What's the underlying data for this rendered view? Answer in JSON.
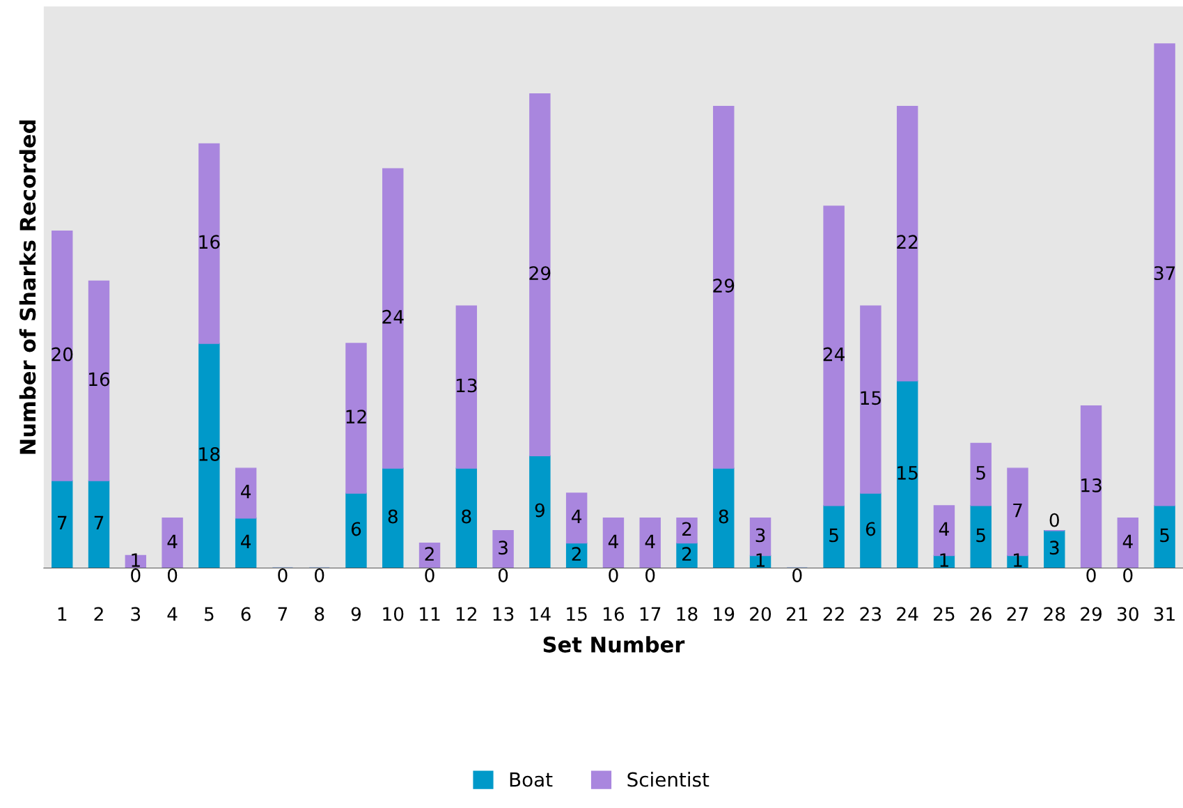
{
  "chart_data": {
    "type": "bar",
    "stacked": true,
    "xlabel": "Set Number",
    "ylabel": "Number of Sharks Recorded",
    "categories": [
      "1",
      "2",
      "3",
      "4",
      "5",
      "6",
      "7",
      "8",
      "9",
      "10",
      "11",
      "12",
      "13",
      "14",
      "15",
      "16",
      "17",
      "18",
      "19",
      "20",
      "21",
      "22",
      "23",
      "24",
      "25",
      "26",
      "27",
      "28",
      "29",
      "30",
      "31"
    ],
    "series": [
      {
        "name": "Boat",
        "color": "#0099c9",
        "values": [
          7,
          7,
          0,
          0,
          18,
          4,
          0,
          0,
          6,
          8,
          0,
          8,
          0,
          9,
          2,
          0,
          0,
          2,
          8,
          1,
          0,
          5,
          6,
          15,
          1,
          5,
          1,
          3,
          0,
          0,
          5
        ],
        "value_labels": [
          "7",
          "7",
          "0",
          "0",
          "18",
          "4",
          "0",
          "0",
          "6",
          "8",
          "0",
          "8",
          "0",
          "9",
          "2",
          "0",
          "0",
          "2",
          "8",
          "1",
          "0",
          "5",
          "6",
          "15",
          "1",
          "5",
          "1",
          "3",
          "0",
          "0",
          "5"
        ]
      },
      {
        "name": "Scientist",
        "color": "#a986de",
        "values": [
          20,
          16,
          1,
          4,
          16,
          4,
          0,
          0,
          12,
          24,
          2,
          13,
          3,
          29,
          4,
          4,
          4,
          2,
          29,
          3,
          0,
          24,
          15,
          22,
          4,
          5,
          7,
          0,
          13,
          4,
          37
        ],
        "value_labels": [
          "20",
          "16",
          "1",
          "4",
          "16",
          "4",
          null,
          null,
          "12",
          "24",
          "2",
          "13",
          "3",
          "29",
          "4",
          "4",
          "4",
          "2",
          "29",
          "3",
          null,
          "24",
          "15",
          "22",
          "4",
          "5",
          "7",
          "0",
          "13",
          "4",
          "37"
        ]
      }
    ],
    "ylim": [
      0,
      45
    ],
    "tick_labels": "x",
    "legend": "bottom",
    "grid": false
  }
}
